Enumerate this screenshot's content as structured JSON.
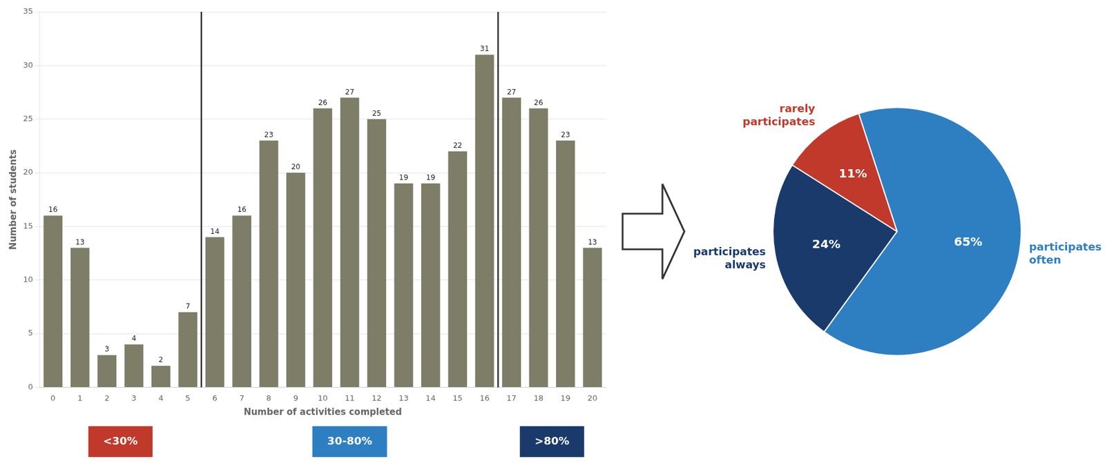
{
  "chart_data": [
    {
      "type": "bar",
      "categories": [
        0,
        1,
        2,
        3,
        4,
        5,
        6,
        7,
        8,
        9,
        10,
        11,
        12,
        13,
        14,
        15,
        16,
        17,
        18,
        19,
        20
      ],
      "values": [
        16,
        13,
        3,
        4,
        2,
        7,
        14,
        16,
        23,
        20,
        26,
        27,
        25,
        19,
        19,
        22,
        31,
        27,
        26,
        23,
        13
      ],
      "color": "#7d7d68",
      "xlabel": "Number of activities completed",
      "ylabel": "Number of students",
      "ylim": [
        0,
        35
      ],
      "yticks": [
        0,
        5,
        10,
        15,
        20,
        25,
        30,
        35
      ],
      "grid": true,
      "data_labels": true,
      "dividers": [
        5.5,
        16.5
      ],
      "annotations": [
        {
          "text": "<30%",
          "color": "#c0392b"
        },
        {
          "text": "30-80%",
          "color": "#2e7fc1"
        },
        {
          "text": ">80%",
          "color": "#1a3a6b"
        }
      ]
    },
    {
      "type": "pie",
      "categories": [
        "participates\noften",
        "participates\nalways",
        "rarely\nparticipates"
      ],
      "values": [
        65,
        24,
        11
      ],
      "colors": [
        "#2e7fc1",
        "#1a3a6b",
        "#c0392b"
      ],
      "value_labels": [
        "65%",
        "24%",
        "11%"
      ],
      "data_labels": true
    }
  ]
}
